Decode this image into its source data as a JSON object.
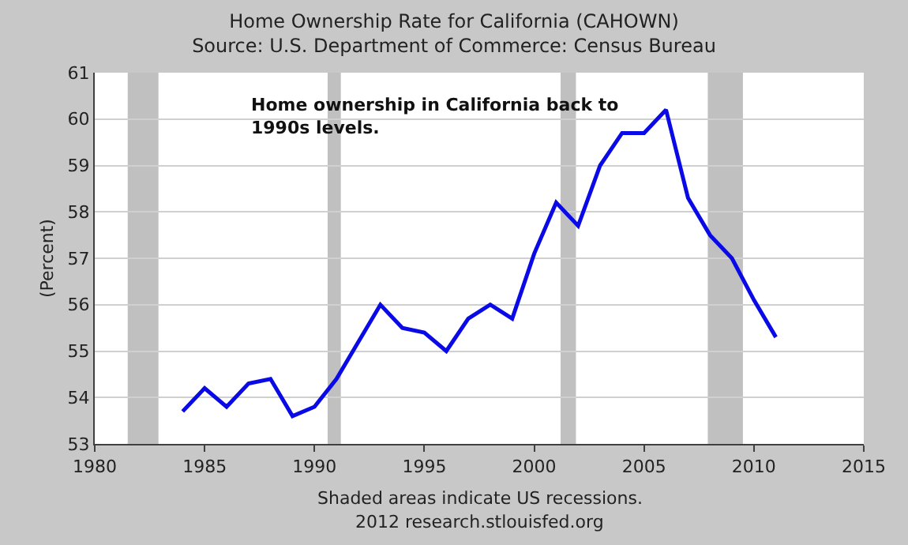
{
  "chart_data": {
    "type": "line",
    "title": "Home Ownership Rate for California (CAHOWN)",
    "subtitle": "Source: U.S. Department of Commerce: Census Bureau",
    "ylabel": "(Percent)",
    "x": [
      1984,
      1985,
      1986,
      1987,
      1988,
      1989,
      1990,
      1991,
      1992,
      1993,
      1994,
      1995,
      1996,
      1997,
      1998,
      1999,
      2000,
      2001,
      2002,
      2003,
      2004,
      2005,
      2006,
      2007,
      2008,
      2009,
      2010,
      2011
    ],
    "series": [
      {
        "color": "#0a0ae6",
        "values": [
          53.7,
          54.2,
          53.8,
          54.3,
          54.4,
          53.6,
          53.8,
          54.4,
          55.2,
          56.0,
          55.5,
          55.4,
          55.0,
          55.7,
          56.0,
          55.7,
          57.1,
          58.2,
          57.7,
          59.0,
          59.7,
          59.7,
          60.2,
          58.3,
          57.5,
          57.0,
          56.1,
          55.3
        ]
      }
    ],
    "xlim": [
      1980,
      2015
    ],
    "xticks": [
      1980,
      1985,
      1990,
      1995,
      2000,
      2005,
      2010,
      2015
    ],
    "ylim": [
      53,
      61
    ],
    "yticks": [
      53,
      54,
      55,
      56,
      57,
      58,
      59,
      60,
      61
    ],
    "bands": [
      {
        "axis": "x",
        "from": 1981.5,
        "to": 1982.9,
        "color": "#c0c0c0"
      },
      {
        "axis": "x",
        "from": 1990.6,
        "to": 1991.2,
        "color": "#c0c0c0"
      },
      {
        "axis": "x",
        "from": 2001.2,
        "to": 2001.9,
        "color": "#c0c0c0"
      },
      {
        "axis": "x",
        "from": 2007.9,
        "to": 2009.5,
        "color": "#c0c0c0"
      }
    ],
    "annotations": [
      "Home ownership in California back to\n1990s levels.",
      "Shaded areas indicate US recessions.",
      "2012 research.stlouisfed.org"
    ],
    "grid": "y",
    "line_style": "solid",
    "marker": "none"
  }
}
